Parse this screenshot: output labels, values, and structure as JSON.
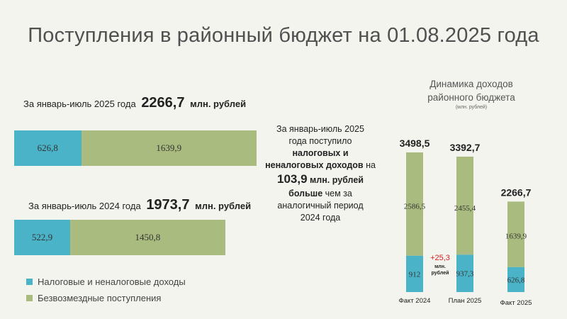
{
  "title": "Поступления в районный бюджет на 01.08.2025 года",
  "summary_2025": {
    "prefix": "За январь-июль 2025 года",
    "value": "2266,7",
    "unit": "млн. рублей"
  },
  "summary_2024": {
    "prefix": "За январь-июль 2024 года",
    "value": "1973,7",
    "unit": "млн. рублей"
  },
  "middle": {
    "line1": "За январь-июль 2025",
    "line2": "года поступило",
    "line3": "налоговых и",
    "line4a": "неналоговых доходов",
    "line4b": " на",
    "value": "103,9",
    "unit": " млн. рублей",
    "line6a": "больше",
    "line6b": " чем за",
    "line7": "аналогичный период",
    "line8": "2024 года"
  },
  "right_title": {
    "line1": "Динамика доходов",
    "line2": "районного  бюджета",
    "sub": "(млн. рублей)"
  },
  "legend": [
    {
      "label": "Налоговые и неналоговые доходы",
      "color": "#4bb3c8"
    },
    {
      "label": "Безвозмездные поступления",
      "color": "#a9bb7e"
    }
  ],
  "chart_data": [
    {
      "type": "bar",
      "orientation": "horizontal",
      "stacked": true,
      "categories": [
        "За январь-июль 2025 года",
        "За январь-июль 2024 года"
      ],
      "series": [
        {
          "name": "Налоговые и неналоговые доходы",
          "values": [
            626.8,
            522.9
          ],
          "labels": [
            "626,8",
            "522,9"
          ],
          "color": "#4bb3c8"
        },
        {
          "name": "Безвозмездные поступления",
          "values": [
            1639.9,
            1450.8
          ],
          "labels": [
            "1639,9",
            "1450,8"
          ],
          "color": "#a9bb7e"
        }
      ],
      "totals": [
        "2266,7",
        "1973,7"
      ]
    },
    {
      "type": "bar",
      "orientation": "vertical",
      "stacked": true,
      "categories": [
        "Факт 2024",
        "План 2025",
        "Факт 2025"
      ],
      "series": [
        {
          "name": "Налоговые и неналоговые доходы",
          "values": [
            912,
            937.3,
            626.8
          ],
          "labels": [
            "912",
            "937,3",
            "626,8"
          ],
          "color": "#4bb3c8"
        },
        {
          "name": "Безвозмездные поступления",
          "values": [
            2586.5,
            2455.4,
            1639.9
          ],
          "labels": [
            "2586,5",
            "2455,4",
            "1639,9"
          ],
          "color": "#a9bb7e"
        }
      ],
      "totals": [
        "3498,5",
        "3392,7",
        "2266,7"
      ],
      "annotation": {
        "value": "+25,3",
        "line2": "млн.",
        "line3": "рублей",
        "color": "#d42020"
      }
    }
  ]
}
